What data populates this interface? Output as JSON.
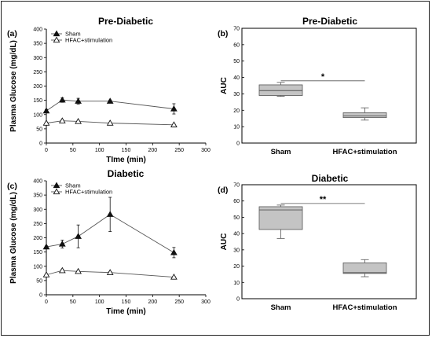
{
  "colors": {
    "line": "#555555",
    "marker": "#111111",
    "box_fill": "#c4c4c4",
    "box_edge": "#555555",
    "axis": "#000000"
  },
  "chart_data": [
    {
      "id": "a",
      "panel_label": "(a)",
      "type": "line",
      "title": "Pre-Diabetic",
      "xlabel": "TIme (min)",
      "ylabel": "Plasma Glucose (mg/dL)",
      "xlim": [
        0,
        300
      ],
      "ylim": [
        0,
        400
      ],
      "xticks": [
        0,
        50,
        100,
        150,
        200,
        250,
        300
      ],
      "yticks": [
        0,
        50,
        100,
        150,
        200,
        250,
        300,
        350,
        400
      ],
      "legend": "top-left",
      "series": [
        {
          "name": "Sham",
          "marker": "filled-triangle",
          "x": [
            0,
            30,
            60,
            120,
            240
          ],
          "y": [
            113,
            151,
            147,
            147,
            120
          ],
          "err": [
            5,
            8,
            10,
            4,
            18
          ]
        },
        {
          "name": "HFAC+stimulation",
          "marker": "open-triangle",
          "x": [
            0,
            30,
            60,
            120,
            240
          ],
          "y": [
            70,
            78,
            76,
            70,
            64
          ],
          "err": [
            3,
            3,
            3,
            2,
            3
          ]
        }
      ]
    },
    {
      "id": "b",
      "panel_label": "(b)",
      "type": "box",
      "title": "Pre-Diabetic",
      "ylabel": "AUC",
      "ylim": [
        0,
        70
      ],
      "yticks": [
        0,
        10,
        20,
        30,
        40,
        50,
        60,
        70
      ],
      "categories": [
        "Sham",
        "HFAC+stimulation"
      ],
      "boxes": [
        {
          "min": 28.5,
          "q1": 29,
          "median": 32,
          "q3": 35.5,
          "max": 37
        },
        {
          "min": 14,
          "q1": 15.5,
          "median": 16.5,
          "q3": 18.5,
          "max": 21.5
        }
      ],
      "significance": "*"
    },
    {
      "id": "c",
      "panel_label": "(c)",
      "type": "line",
      "title": "Diabetic",
      "xlabel": "Time (min)",
      "ylabel": "Plasma Glucose (mg/dL)",
      "xlim": [
        0,
        300
      ],
      "ylim": [
        0,
        400
      ],
      "xticks": [
        0,
        50,
        100,
        150,
        200,
        250,
        300
      ],
      "yticks": [
        0,
        50,
        100,
        150,
        200,
        250,
        300,
        350,
        400
      ],
      "legend": "top-left",
      "series": [
        {
          "name": "Sham",
          "marker": "filled-triangle",
          "x": [
            0,
            30,
            60,
            120,
            240
          ],
          "y": [
            168,
            178,
            205,
            282,
            148
          ],
          "err": [
            3,
            14,
            40,
            60,
            18
          ]
        },
        {
          "name": "HFAC+stimulation",
          "marker": "open-triangle",
          "x": [
            0,
            30,
            60,
            120,
            240
          ],
          "y": [
            70,
            85,
            82,
            78,
            62
          ],
          "err": [
            3,
            4,
            3,
            3,
            3
          ]
        }
      ]
    },
    {
      "id": "d",
      "panel_label": "(d)",
      "type": "box",
      "title": "Diabetic",
      "ylabel": "AUC",
      "ylim": [
        0,
        70
      ],
      "yticks": [
        0,
        10,
        20,
        30,
        40,
        50,
        60,
        70
      ],
      "categories": [
        "Sham",
        "HFAC+stimulation"
      ],
      "boxes": [
        {
          "min": 37,
          "q1": 42.5,
          "median": 54.5,
          "q3": 56.5,
          "max": 57.5
        },
        {
          "min": 13.5,
          "q1": 15.5,
          "median": 16,
          "q3": 22,
          "max": 24
        }
      ],
      "significance": "**"
    }
  ]
}
